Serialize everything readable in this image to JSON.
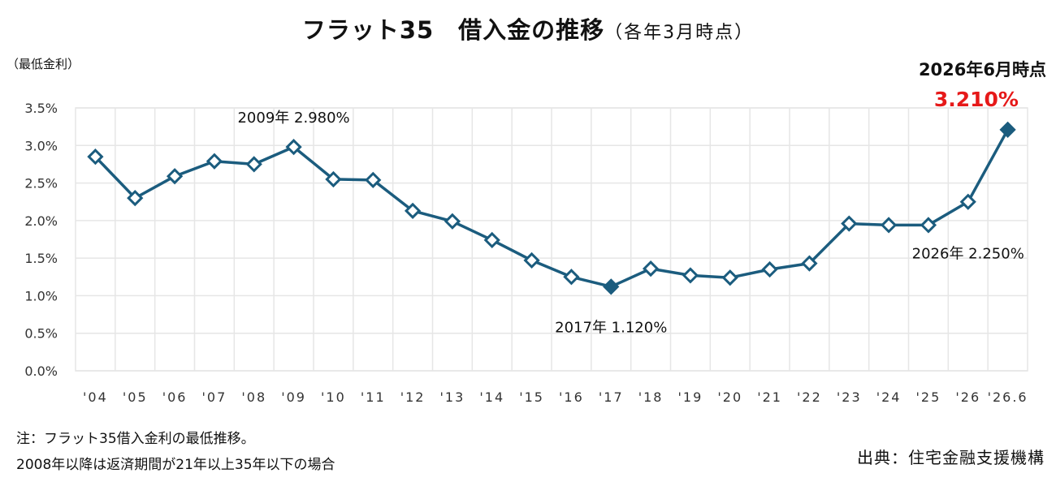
{
  "chart_data": {
    "type": "line",
    "title": "フラット35　借入金の推移",
    "subtitle": "（各年3月時点）",
    "ylabel": "（最低金利）",
    "ylim": [
      0,
      3.5
    ],
    "yticks": [
      "0.0%",
      "0.5%",
      "1.0%",
      "1.5%",
      "2.0%",
      "2.5%",
      "3.0%",
      "3.5%"
    ],
    "categories": [
      "'04",
      "'05",
      "'06",
      "'07",
      "'08",
      "'09",
      "'10",
      "'11",
      "'12",
      "'13",
      "'14",
      "'15",
      "'16",
      "'17",
      "'18",
      "'19",
      "'20",
      "'21",
      "'22",
      "'23",
      "'24",
      "'25",
      "'26",
      "'26.6"
    ],
    "series": [
      {
        "values": [
          2.85,
          2.3,
          2.59,
          2.79,
          2.75,
          2.98,
          2.55,
          2.54,
          2.13,
          1.99,
          1.74,
          1.47,
          1.25,
          1.12,
          1.36,
          1.27,
          1.24,
          1.35,
          1.43,
          1.96,
          1.94,
          1.94,
          2.25,
          3.21
        ],
        "color": "#1b5c7e",
        "filled_markers": [
          13,
          23
        ]
      }
    ],
    "annotations": [
      {
        "text": "2009年  2.980%",
        "index": 5
      },
      {
        "text": "2017年  1.120%",
        "index": 13
      },
      {
        "text": "2026年  2.250%",
        "index": 22
      }
    ],
    "grid": true,
    "legend": "none"
  },
  "latest": {
    "heading": "2026年6月時点",
    "value": "3.210%"
  },
  "notes": {
    "line1": "注：フラット35借入金利の最低推移。",
    "line2": "2008年以降は返済期間が21年以上35年以下の場合"
  },
  "source": "出典：住宅金融支援機構",
  "colors": {
    "line": "#1b5c7e",
    "highlight": "#e61919",
    "grid": "#e6e6e6"
  }
}
